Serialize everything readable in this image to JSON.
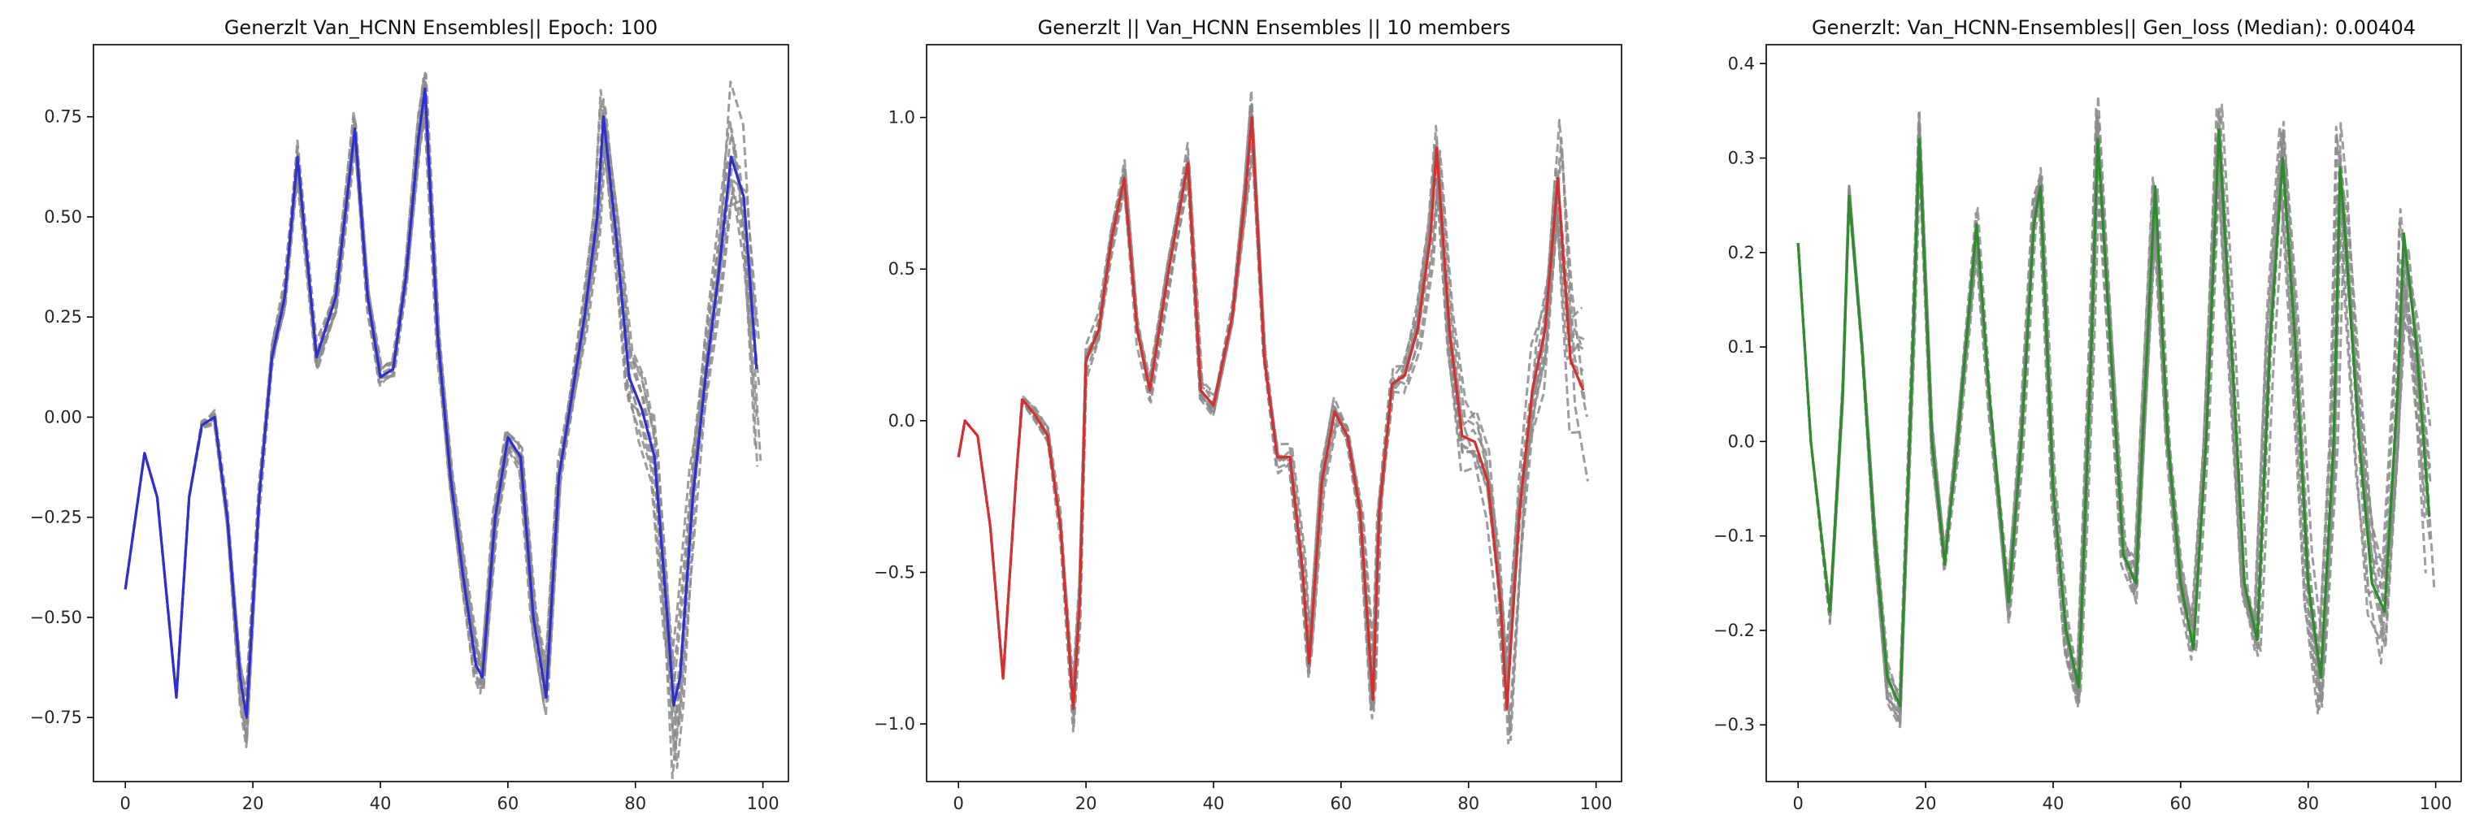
{
  "chart_data": [
    {
      "type": "line",
      "title": "Generzlt Van_HCNN Ensembles|| Epoch: 100",
      "xlim": [
        -5,
        104
      ],
      "ylim": [
        -0.91,
        0.93
      ],
      "xticks": [
        0,
        20,
        40,
        60,
        80,
        100
      ],
      "yticks": [
        -0.75,
        -0.5,
        -0.25,
        0.0,
        0.25,
        0.5,
        0.75
      ],
      "ytick_labels": [
        "−0.75",
        "−0.50",
        "−0.25",
        "0.00",
        "0.25",
        "0.50",
        "0.75"
      ],
      "main_color": "#2f2fd0",
      "member_color": "#8c8c8c",
      "member_count": 10,
      "main_series": {
        "x": [
          0,
          3,
          5,
          8,
          10,
          12,
          14,
          16,
          18,
          19,
          21,
          23,
          25,
          27,
          30,
          33,
          36,
          38,
          40,
          42,
          44,
          46,
          47,
          49,
          51,
          53,
          55,
          56,
          58,
          60,
          62,
          64,
          66,
          68,
          70,
          72,
          74,
          75,
          77,
          79,
          81,
          83,
          85,
          86,
          87,
          89,
          91,
          93,
          95,
          97,
          99
        ],
        "y": [
          -0.43,
          -0.09,
          -0.2,
          -0.7,
          -0.2,
          -0.02,
          0.0,
          -0.25,
          -0.65,
          -0.75,
          -0.2,
          0.15,
          0.3,
          0.65,
          0.15,
          0.3,
          0.72,
          0.3,
          0.1,
          0.12,
          0.35,
          0.7,
          0.82,
          0.2,
          -0.15,
          -0.4,
          -0.62,
          -0.65,
          -0.25,
          -0.05,
          -0.1,
          -0.5,
          -0.7,
          -0.15,
          0.05,
          0.25,
          0.5,
          0.75,
          0.45,
          0.1,
          0.02,
          -0.1,
          -0.5,
          -0.72,
          -0.65,
          -0.2,
          0.1,
          0.35,
          0.65,
          0.55,
          0.12
        ]
      },
      "member_spread": [
        0,
        0,
        0,
        0,
        0,
        0.01,
        0.02,
        0.03,
        0.05,
        0.06,
        0.04,
        0.03,
        0.03,
        0.04,
        0.03,
        0.03,
        0.04,
        0.03,
        0.02,
        0.02,
        0.03,
        0.04,
        0.05,
        0.04,
        0.03,
        0.03,
        0.04,
        0.04,
        0.03,
        0.02,
        0.03,
        0.04,
        0.05,
        0.04,
        0.03,
        0.03,
        0.04,
        0.06,
        0.05,
        0.06,
        0.07,
        0.08,
        0.1,
        0.12,
        0.12,
        0.11,
        0.1,
        0.11,
        0.13,
        0.15,
        0.17
      ]
    },
    {
      "type": "line",
      "title": "Generzlt || Van_HCNN Ensembles || 10 members",
      "xlim": [
        -5,
        104
      ],
      "ylim": [
        -1.19,
        1.24
      ],
      "xticks": [
        0,
        20,
        40,
        60,
        80,
        100
      ],
      "yticks": [
        -1.0,
        -0.5,
        0.0,
        0.5,
        1.0
      ],
      "ytick_labels": [
        "−1.0",
        "−0.5",
        "0.0",
        "0.5",
        "1.0"
      ],
      "main_color": "#d43030",
      "member_color": "#8c8c8c",
      "member_count": 10,
      "main_series": {
        "x": [
          0,
          1,
          3,
          5,
          7,
          9,
          10,
          12,
          14,
          16,
          18,
          19,
          20,
          22,
          24,
          26,
          28,
          30,
          33,
          36,
          38,
          40,
          43,
          45,
          46,
          48,
          50,
          52,
          54,
          55,
          57,
          59,
          61,
          63,
          65,
          66,
          68,
          70,
          72,
          74,
          75,
          77,
          79,
          81,
          83,
          85,
          86,
          88,
          90,
          92,
          94,
          96,
          98
        ],
        "y": [
          -0.12,
          0.0,
          -0.05,
          -0.35,
          -0.85,
          -0.2,
          0.07,
          0.02,
          -0.05,
          -0.35,
          -0.95,
          -0.6,
          0.2,
          0.3,
          0.6,
          0.8,
          0.3,
          0.1,
          0.5,
          0.85,
          0.1,
          0.05,
          0.35,
          0.75,
          1.0,
          0.2,
          -0.12,
          -0.12,
          -0.5,
          -0.8,
          -0.2,
          0.03,
          -0.05,
          -0.3,
          -0.92,
          -0.3,
          0.12,
          0.15,
          0.3,
          0.6,
          0.9,
          0.3,
          -0.05,
          -0.07,
          -0.2,
          -0.6,
          -0.95,
          -0.3,
          0.1,
          0.3,
          0.8,
          0.2,
          0.1
        ]
      },
      "member_spread": [
        0,
        0,
        0,
        0,
        0,
        0,
        0.01,
        0.02,
        0.03,
        0.04,
        0.06,
        0.06,
        0.05,
        0.04,
        0.04,
        0.05,
        0.04,
        0.03,
        0.04,
        0.05,
        0.03,
        0.03,
        0.04,
        0.05,
        0.06,
        0.05,
        0.04,
        0.03,
        0.04,
        0.05,
        0.04,
        0.03,
        0.03,
        0.04,
        0.06,
        0.05,
        0.04,
        0.04,
        0.05,
        0.06,
        0.07,
        0.07,
        0.08,
        0.09,
        0.1,
        0.11,
        0.12,
        0.12,
        0.12,
        0.14,
        0.16,
        0.18,
        0.2
      ]
    },
    {
      "type": "line",
      "title": "Generzlt: Van_HCNN-Ensembles|| Gen_loss (Median): 0.00404",
      "xlim": [
        -5,
        104
      ],
      "ylim": [
        -0.36,
        0.42
      ],
      "xticks": [
        0,
        20,
        40,
        60,
        80,
        100
      ],
      "yticks": [
        -0.3,
        -0.2,
        -0.1,
        0.0,
        0.1,
        0.2,
        0.3,
        0.4
      ],
      "ytick_labels": [
        "−0.3",
        "−0.2",
        "−0.1",
        "0.0",
        "0.1",
        "0.2",
        "0.3",
        "0.4"
      ],
      "main_color": "#2e8b2e",
      "member_color": "#8c8c8c",
      "member_count": 10,
      "main_series": {
        "x": [
          0,
          2,
          5,
          7,
          8,
          10,
          12,
          14,
          16,
          18,
          19,
          21,
          23,
          25,
          28,
          30,
          33,
          35,
          37,
          38,
          40,
          42,
          44,
          46,
          47,
          49,
          51,
          53,
          54,
          56,
          58,
          60,
          62,
          64,
          66,
          68,
          70,
          72,
          74,
          76,
          78,
          80,
          82,
          84,
          85,
          86,
          88,
          90,
          92,
          94,
          95,
          97,
          99
        ],
        "y": [
          0.21,
          0.0,
          -0.18,
          0.05,
          0.26,
          0.1,
          -0.1,
          -0.25,
          -0.28,
          0.1,
          0.32,
          0.0,
          -0.13,
          0.0,
          0.23,
          0.05,
          -0.17,
          0.0,
          0.23,
          0.27,
          -0.05,
          -0.2,
          -0.26,
          0.1,
          0.32,
          0.1,
          -0.12,
          -0.15,
          0.0,
          0.27,
          0.0,
          -0.15,
          -0.22,
          0.0,
          0.33,
          0.1,
          -0.15,
          -0.21,
          0.1,
          0.3,
          0.1,
          -0.15,
          -0.25,
          0.0,
          0.29,
          0.2,
          0.0,
          -0.15,
          -0.18,
          0.05,
          0.22,
          0.1,
          -0.08
        ]
      },
      "member_spread": [
        0,
        0,
        0.01,
        0.01,
        0.01,
        0.01,
        0.02,
        0.02,
        0.02,
        0.03,
        0.03,
        0.02,
        0.02,
        0.02,
        0.02,
        0.02,
        0.02,
        0.02,
        0.02,
        0.02,
        0.02,
        0.02,
        0.02,
        0.03,
        0.03,
        0.02,
        0.02,
        0.02,
        0.02,
        0.03,
        0.02,
        0.02,
        0.02,
        0.02,
        0.03,
        0.02,
        0.02,
        0.02,
        0.03,
        0.03,
        0.03,
        0.03,
        0.03,
        0.04,
        0.05,
        0.05,
        0.05,
        0.05,
        0.05,
        0.06,
        0.07,
        0.07,
        0.07
      ]
    }
  ]
}
